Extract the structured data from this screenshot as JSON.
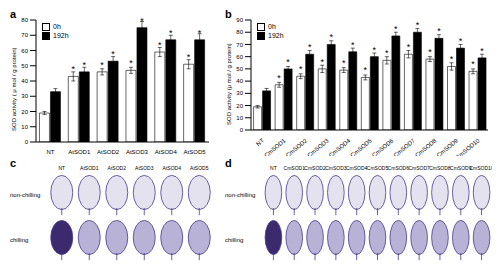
{
  "chart_data": [
    {
      "type": "bar",
      "title": "a",
      "y_label": "SOD activity ( μ mol / g protein)",
      "annotation": "*",
      "legend": "upper left",
      "grid": false,
      "categories": [
        "NT",
        "AtSOD1",
        "AtSOD2",
        "AtSOD3",
        "AtSOD4",
        "AtSOD5"
      ],
      "ylim": [
        0,
        80
      ],
      "yticks": [
        0,
        10,
        20,
        30,
        40,
        50,
        60,
        70,
        80
      ],
      "series": [
        {
          "name": "0h",
          "color": "#ffffff",
          "values": [
            19,
            43,
            46,
            47,
            59,
            51
          ],
          "errors": [
            1,
            3,
            2,
            2,
            3,
            3
          ],
          "stars": [
            false,
            true,
            true,
            true,
            true,
            true
          ]
        },
        {
          "name": "192h",
          "color": "#000000",
          "values": [
            33,
            46,
            53,
            75,
            67,
            67
          ],
          "errors": [
            2,
            3,
            3,
            4,
            3,
            4
          ],
          "stars": [
            false,
            true,
            true,
            true,
            true,
            true
          ]
        }
      ]
    },
    {
      "type": "bar",
      "title": "b",
      "y_label": "SOD activity (μ mol / g protein)",
      "annotation": "*",
      "legend": "upper left",
      "grid": false,
      "categories": [
        "NT",
        "CmSOD1",
        "CmSOD2",
        "CmSOD3",
        "CmSOD4",
        "CmSOD5",
        "CmSOD6",
        "CmSOD7",
        "CmSOD8",
        "CmSOD9",
        "CmSOD10"
      ],
      "ylim": [
        0,
        90
      ],
      "yticks": [
        0,
        10,
        20,
        30,
        40,
        50,
        60,
        70,
        80,
        90
      ],
      "series": [
        {
          "name": "0h",
          "color": "#ffffff",
          "values": [
            19,
            37,
            44,
            50,
            49,
            43,
            57,
            62,
            58,
            52,
            48
          ],
          "errors": [
            1,
            2,
            2,
            3,
            2,
            2,
            3,
            3,
            2,
            3,
            2
          ],
          "stars": [
            false,
            true,
            true,
            true,
            true,
            true,
            true,
            true,
            true,
            true,
            true
          ]
        },
        {
          "name": "192h",
          "color": "#000000",
          "values": [
            32,
            50,
            62,
            70,
            64,
            60,
            77,
            80,
            75,
            67,
            59
          ],
          "errors": [
            2,
            2,
            3,
            3,
            3,
            3,
            3,
            3,
            3,
            3,
            3
          ],
          "stars": [
            false,
            true,
            true,
            true,
            true,
            true,
            true,
            true,
            true,
            true,
            true
          ]
        }
      ]
    }
  ],
  "images": [
    {
      "title": "c",
      "columns": [
        "NT",
        "AtSOD1",
        "AtSOD2",
        "AtSOD3",
        "AtSOD4",
        "AtSOD5"
      ],
      "rows": [
        "non-chilling",
        "chilling"
      ]
    },
    {
      "title": "d",
      "columns": [
        "NT",
        "CmSOD1",
        "CmSOD2",
        "CmSOD3",
        "CmSOD4",
        "CmSOD5",
        "CmSOD6",
        "CmSOD7",
        "CmSOD8",
        "CmSOD9",
        "CmSOD10"
      ],
      "rows": [
        "non-chilling",
        "chilling"
      ]
    }
  ]
}
